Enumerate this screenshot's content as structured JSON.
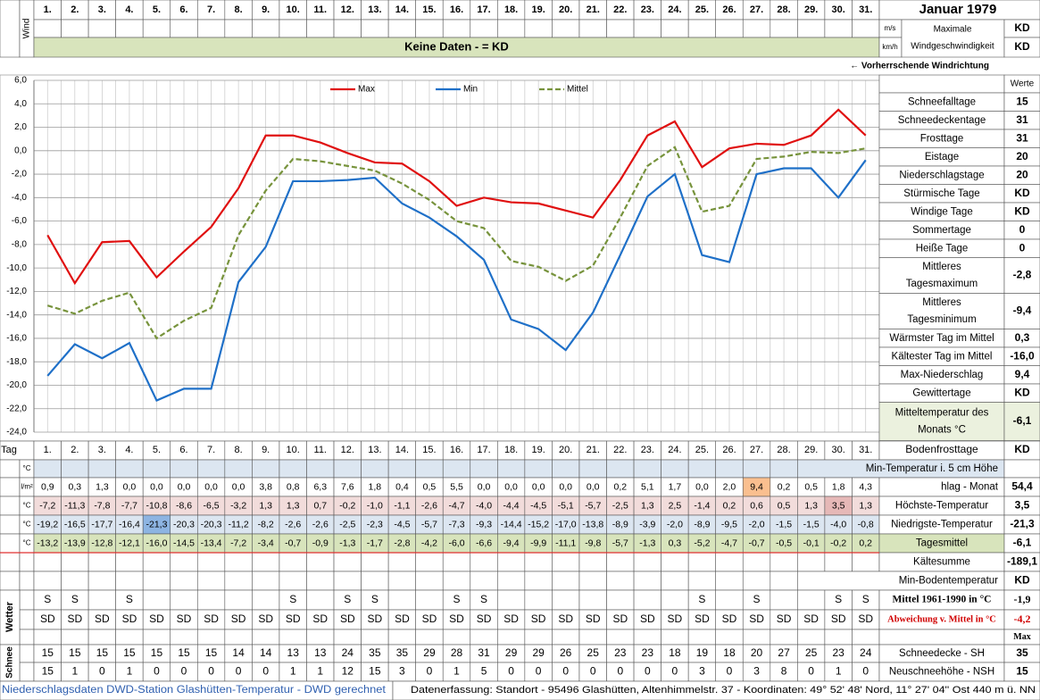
{
  "header": {
    "month": "Januar 1979",
    "wind_label": "Wind",
    "unit_ms": "m/s",
    "unit_kmh": "km/h",
    "max_wind_label": [
      "Maximale",
      "Windgeschwindigkeit"
    ],
    "max_wind_ms": "KD",
    "max_wind_kmh": "KD",
    "no_data": "Keine Daten -  = KD",
    "wind_direction": "← Vorherrschende Windrichtung"
  },
  "chart_data": {
    "type": "line",
    "categories": [
      "1.",
      "2.",
      "3.",
      "4.",
      "5.",
      "6.",
      "7.",
      "8.",
      "9.",
      "10.",
      "11.",
      "12.",
      "13.",
      "14.",
      "15.",
      "16.",
      "17.",
      "18.",
      "19.",
      "20.",
      "21.",
      "22.",
      "23.",
      "24.",
      "25.",
      "26.",
      "27.",
      "28.",
      "29.",
      "30.",
      "31."
    ],
    "ylim": [
      -24,
      6
    ],
    "yticks": [
      {
        "value": -24,
        "label": "-24,0"
      },
      {
        "value": -22,
        "label": "-22,0"
      },
      {
        "value": -20,
        "label": "-20,0"
      },
      {
        "value": -18,
        "label": "-18,0"
      },
      {
        "value": -16,
        "label": "-16,0"
      },
      {
        "value": -14,
        "label": "-14,0"
      },
      {
        "value": -12,
        "label": "-12,0"
      },
      {
        "value": -10,
        "label": "-10,0"
      },
      {
        "value": -8,
        "label": "-8,0"
      },
      {
        "value": -6,
        "label": "-6,0"
      },
      {
        "value": -4,
        "label": "-4,0"
      },
      {
        "value": -2,
        "label": "-2,0"
      },
      {
        "value": 0,
        "label": "0,0"
      },
      {
        "value": 2,
        "label": "2,0"
      },
      {
        "value": 4,
        "label": "4,0"
      },
      {
        "value": 6,
        "label": "6,0"
      }
    ],
    "grid": true,
    "legend": "top",
    "series": [
      {
        "name": "Max",
        "color": "#e01010",
        "dashed": false,
        "values": [
          -7.2,
          -11.3,
          -7.8,
          -7.7,
          -10.8,
          -8.6,
          -6.5,
          -3.2,
          1.3,
          1.3,
          0.7,
          -0.2,
          -1.0,
          -1.1,
          -2.6,
          -4.7,
          -4.0,
          -4.4,
          -4.5,
          -5.1,
          -5.7,
          -2.5,
          1.3,
          2.5,
          -1.4,
          0.2,
          0.6,
          0.5,
          1.3,
          3.5,
          1.3
        ],
        "value_labels": [
          "-7,2",
          "-11,3",
          "-7,8",
          "-7,7",
          "-10,8",
          "-8,6",
          "-6,5",
          "-3,2",
          "1,3",
          "1,3",
          "0,7",
          "-0,2",
          "-1,0",
          "-1,1",
          "-2,6",
          "-4,7",
          "-4,0",
          "-4,4",
          "-4,5",
          "-5,1",
          "-5,7",
          "-2,5",
          "1,3",
          "2,5",
          "-1,4",
          "0,2",
          "0,6",
          "0,5",
          "1,3",
          "3,5",
          "1,3"
        ]
      },
      {
        "name": "Min",
        "color": "#1f70c8",
        "dashed": false,
        "values": [
          -19.2,
          -16.5,
          -17.7,
          -16.4,
          -21.3,
          -20.3,
          -20.3,
          -11.2,
          -8.2,
          -2.6,
          -2.6,
          -2.5,
          -2.3,
          -4.5,
          -5.7,
          -7.3,
          -9.3,
          -14.4,
          -15.2,
          -17.0,
          -13.8,
          -8.9,
          -3.9,
          -2.0,
          -8.9,
          -9.5,
          -2.0,
          -1.5,
          -1.5,
          -4.0,
          -0.8
        ],
        "value_labels": [
          "-19,2",
          "-16,5",
          "-17,7",
          "-16,4",
          "-21,3",
          "-20,3",
          "-20,3",
          "-11,2",
          "-8,2",
          "-2,6",
          "-2,6",
          "-2,5",
          "-2,3",
          "-4,5",
          "-5,7",
          "-7,3",
          "-9,3",
          "-14,4",
          "-15,2",
          "-17,0",
          "-13,8",
          "-8,9",
          "-3,9",
          "-2,0",
          "-8,9",
          "-9,5",
          "-2,0",
          "-1,5",
          "-1,5",
          "-4,0",
          "-0,8"
        ]
      },
      {
        "name": "Mittel",
        "color": "#77933c",
        "dashed": true,
        "values": [
          -13.2,
          -13.9,
          -12.8,
          -12.1,
          -16.0,
          -14.5,
          -13.4,
          -7.2,
          -3.4,
          -0.7,
          -0.9,
          -1.3,
          -1.7,
          -2.8,
          -4.2,
          -6.0,
          -6.6,
          -9.4,
          -9.9,
          -11.1,
          -9.8,
          -5.7,
          -1.3,
          0.3,
          -5.2,
          -4.7,
          -0.7,
          -0.5,
          -0.1,
          -0.2,
          0.2
        ],
        "value_labels": [
          "-13,2",
          "-13,9",
          "-12,8",
          "-12,1",
          "-16,0",
          "-14,5",
          "-13,4",
          "-7,2",
          "-3,4",
          "-0,7",
          "-0,9",
          "-1,3",
          "-1,7",
          "-2,8",
          "-4,2",
          "-6,0",
          "-6,6",
          "-9,4",
          "-9,9",
          "-11,1",
          "-9,8",
          "-5,7",
          "-1,3",
          "0,3",
          "-5,2",
          "-4,7",
          "-0,7",
          "-0,5",
          "-0,1",
          "-0,2",
          "0,2"
        ]
      }
    ]
  },
  "stats": {
    "header": "Werte",
    "rows": [
      {
        "label": [
          "Schneefalltage"
        ],
        "value": "15"
      },
      {
        "label": [
          "Schneedeckentage"
        ],
        "value": "31"
      },
      {
        "label": [
          "Frosttage"
        ],
        "value": "31"
      },
      {
        "label": [
          "Eistage"
        ],
        "value": "20"
      },
      {
        "label": [
          "Niederschlagstage"
        ],
        "value": "20"
      },
      {
        "label": [
          "Stürmische Tage"
        ],
        "value": "KD"
      },
      {
        "label": [
          "Windige Tage"
        ],
        "value": "KD"
      },
      {
        "label": [
          "Sommertage"
        ],
        "value": "0"
      },
      {
        "label": [
          "Heiße Tage"
        ],
        "value": "0"
      },
      {
        "label": [
          "Mittleres",
          "Tagesmaximum"
        ],
        "value": "-2,8"
      },
      {
        "label": [
          "Mittleres",
          "Tagesminimum"
        ],
        "value": "-9,4"
      },
      {
        "label": [
          "Wärmster Tag im Mittel"
        ],
        "value": "0,3"
      },
      {
        "label": [
          "Kältester Tag im Mittel"
        ],
        "value": "-16,0"
      },
      {
        "label": [
          "Max-Niederschlag"
        ],
        "value": "9,4"
      },
      {
        "label": [
          "Gewittertage"
        ],
        "value": "KD"
      },
      {
        "label": [
          "Mitteltemperatur des",
          "Monats °C"
        ],
        "value": "-6,1"
      }
    ]
  },
  "table": {
    "tag_label": "Tag",
    "tag_row": {
      "label": "Bodenfrosttage",
      "value": "KD"
    },
    "wetter_label": "Wetter",
    "schnee_label": "Schnee",
    "rows": [
      {
        "unit": "°C",
        "label": "Min-Temperatur i. 5 cm Höhe"
      },
      {
        "unit": "l/m²",
        "cells": [
          "0,9",
          "0,3",
          "1,3",
          "0,0",
          "0,0",
          "0,0",
          "0,0",
          "0,0",
          "3,8",
          "0,8",
          "6,3",
          "7,6",
          "1,8",
          "0,4",
          "0,5",
          "5,5",
          "0,0",
          "0,0",
          "0,0",
          "0,0",
          "0,0",
          "0,2",
          "5,1",
          "1,7",
          "0,0",
          "2,0",
          "9,4",
          "0,2",
          "0,5",
          "1,8",
          "4,3"
        ],
        "label": "hlag - Monat",
        "value": "54,4"
      },
      {
        "unit": "°C",
        "label": "Höchste-Temperatur",
        "value": "3,5"
      },
      {
        "unit": "°C",
        "label": "Niedrigste-Temperatur",
        "value": "-21,3"
      },
      {
        "unit": "°C",
        "label": "Tagesmittel",
        "value": "-6,1"
      },
      {
        "label": "Kältesumme",
        "value": "-189,1"
      },
      {
        "label": "Min-Bodentemperatur",
        "value": "KD"
      },
      {
        "cells": [
          "S",
          "S",
          null,
          "S",
          null,
          null,
          null,
          null,
          null,
          "S",
          null,
          "S",
          "S",
          null,
          null,
          "S",
          "S",
          null,
          null,
          null,
          null,
          null,
          null,
          null,
          "S",
          null,
          "S",
          null,
          null,
          "S",
          "S"
        ],
        "label": "Mittel 1961-1990 in °C",
        "value": "-1,9"
      },
      {
        "cells": [
          "SD",
          "SD",
          "SD",
          "SD",
          "SD",
          "SD",
          "SD",
          "SD",
          "SD",
          "SD",
          "SD",
          "SD",
          "SD",
          "SD",
          "SD",
          "SD",
          "SD",
          "SD",
          "SD",
          "SD",
          "SD",
          "SD",
          "SD",
          "SD",
          "SD",
          "SD",
          "SD",
          "SD",
          "SD",
          "SD",
          "SD"
        ],
        "label": "Abweichung v. Mittel in °C",
        "value": "-4,2"
      },
      {
        "value": "Max"
      },
      {
        "cells": [
          "15",
          "15",
          "15",
          "15",
          "15",
          "15",
          "15",
          "14",
          "14",
          "13",
          "13",
          "24",
          "35",
          "35",
          "29",
          "28",
          "31",
          "29",
          "29",
          "26",
          "25",
          "23",
          "23",
          "18",
          "19",
          "18",
          "20",
          "27",
          "25",
          "23",
          "24"
        ],
        "label": "Schneedecke -  SH",
        "value": "35"
      },
      {
        "cells": [
          "15",
          "1",
          "0",
          "1",
          "0",
          "0",
          "0",
          "0",
          "0",
          "1",
          "1",
          "12",
          "15",
          "3",
          "0",
          "1",
          "5",
          "0",
          "0",
          "0",
          "0",
          "0",
          "0",
          "0",
          "3",
          "0",
          "3",
          "8",
          "0",
          "1",
          "0"
        ],
        "label": "Neuschneehöhe - NSH",
        "value": "15"
      }
    ]
  },
  "footer": {
    "left": "Niederschlagsdaten DWD-Station Glashütten-Temperatur -  DWD gerechnet",
    "right": "Datenerfassung: Standort - 95496 Glashütten, Altenhimmelstr. 37 - Koordinaten: 49° 52' 48' Nord,  11° 27' 04'' Ost   440 m ü. NN"
  }
}
